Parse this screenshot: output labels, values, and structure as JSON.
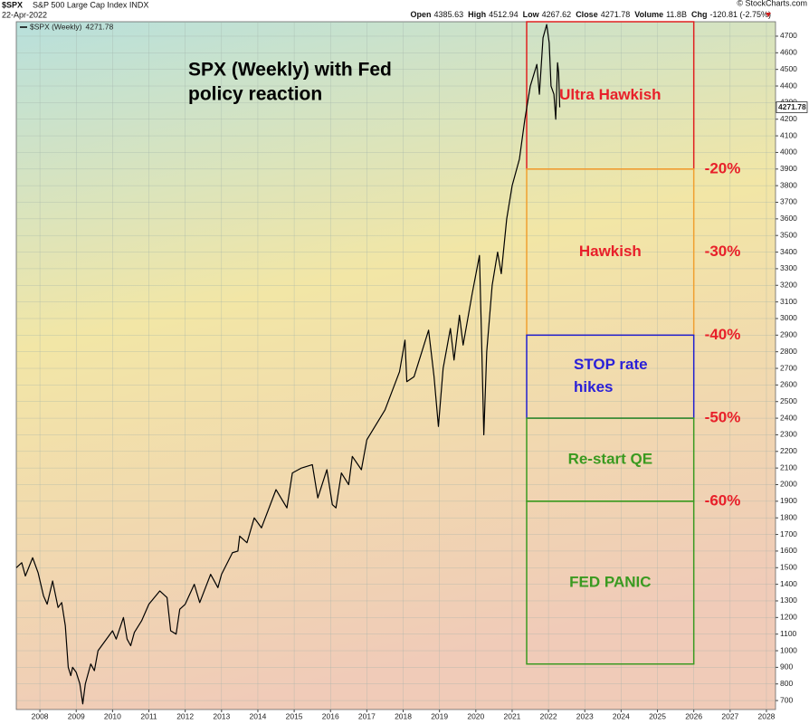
{
  "header": {
    "symbol": "$SPX",
    "name": "S&P 500 Large Cap Index INDX",
    "date": "22-Apr-2022",
    "watermark": "© StockCharts.com",
    "quote": [
      {
        "label": "Open",
        "value": 4385.63
      },
      {
        "label": "High",
        "value": 4512.94
      },
      {
        "label": "Low",
        "value": 4267.62
      },
      {
        "label": "Close",
        "value": 4271.78
      },
      {
        "label": "Volume",
        "value": "11.8B"
      },
      {
        "label": "Chg",
        "value": "-120.81 (-2.75%)"
      }
    ]
  },
  "chart_data": {
    "type": "line",
    "title_lines": [
      "SPX (Weekly) with Fed",
      "policy reaction"
    ],
    "last_value": 4271.78,
    "x": [
      2007.35,
      2007.5,
      2007.6,
      2007.8,
      2007.95,
      2008.1,
      2008.2,
      2008.35,
      2008.5,
      2008.6,
      2008.7,
      2008.78,
      2008.85,
      2008.9,
      2009.0,
      2009.1,
      2009.18,
      2009.25,
      2009.4,
      2009.5,
      2009.6,
      2009.8,
      2010.0,
      2010.1,
      2010.3,
      2010.4,
      2010.5,
      2010.6,
      2010.8,
      2011.0,
      2011.3,
      2011.5,
      2011.6,
      2011.75,
      2011.85,
      2012.0,
      2012.25,
      2012.4,
      2012.7,
      2012.9,
      2013.0,
      2013.3,
      2013.45,
      2013.5,
      2013.7,
      2013.9,
      2014.1,
      2014.5,
      2014.8,
      2014.95,
      2015.2,
      2015.5,
      2015.65,
      2015.9,
      2016.05,
      2016.15,
      2016.3,
      2016.5,
      2016.6,
      2016.85,
      2017.0,
      2017.5,
      2017.9,
      2018.05,
      2018.1,
      2018.3,
      2018.7,
      2018.85,
      2018.97,
      2019.1,
      2019.3,
      2019.4,
      2019.55,
      2019.65,
      2019.9,
      2020.1,
      2020.15,
      2020.22,
      2020.3,
      2020.45,
      2020.6,
      2020.7,
      2020.85,
      2021.0,
      2021.2,
      2021.35,
      2021.5,
      2021.68,
      2021.75,
      2021.85,
      2021.95,
      2022.02,
      2022.07,
      2022.15,
      2022.2,
      2022.25,
      2022.28,
      2022.31
    ],
    "series": [
      {
        "name": "$SPX (Weekly)",
        "color": "#000000",
        "values": [
          1500,
          1530,
          1450,
          1560,
          1470,
          1330,
          1280,
          1420,
          1260,
          1290,
          1150,
          900,
          850,
          900,
          870,
          800,
          680,
          800,
          920,
          880,
          1000,
          1060,
          1120,
          1070,
          1200,
          1070,
          1030,
          1110,
          1180,
          1280,
          1360,
          1320,
          1120,
          1100,
          1250,
          1280,
          1400,
          1290,
          1460,
          1380,
          1460,
          1590,
          1600,
          1690,
          1650,
          1800,
          1740,
          1970,
          1860,
          2070,
          2100,
          2120,
          1920,
          2090,
          1880,
          1860,
          2070,
          2000,
          2170,
          2090,
          2270,
          2450,
          2680,
          2870,
          2620,
          2650,
          2930,
          2650,
          2350,
          2700,
          2940,
          2750,
          3020,
          2840,
          3150,
          3380,
          2950,
          2300,
          2800,
          3200,
          3400,
          3270,
          3600,
          3800,
          3960,
          4200,
          4400,
          4530,
          4350,
          4690,
          4770,
          4660,
          4400,
          4350,
          4200,
          4540,
          4480,
          4271.78
        ]
      }
    ],
    "xlim": [
      2007.35,
      2028.25
    ],
    "xticks": [
      2008,
      2009,
      2010,
      2011,
      2012,
      2013,
      2014,
      2015,
      2016,
      2017,
      2018,
      2019,
      2020,
      2021,
      2022,
      2023,
      2024,
      2025,
      2026,
      2027,
      2028
    ],
    "ylim": [
      646,
      4787
    ],
    "yticks": [
      700,
      800,
      900,
      1000,
      1100,
      1200,
      1300,
      1400,
      1500,
      1600,
      1700,
      1800,
      1900,
      2000,
      2100,
      2200,
      2300,
      2400,
      2500,
      2600,
      2700,
      2800,
      2900,
      3000,
      3100,
      3200,
      3300,
      3400,
      3500,
      3600,
      3700,
      3800,
      3900,
      4000,
      4100,
      4200,
      4300,
      4400,
      4500,
      4600,
      4700
    ],
    "grid": true,
    "zones": [
      {
        "label_lines": [
          "Ultra Hawkish"
        ],
        "from": 3900,
        "to": 4787,
        "x_from": 2021.4,
        "x_to": 2026.0,
        "color": "#e02020",
        "text_color": "#e8202a"
      },
      {
        "label_lines": [
          "Hawkish"
        ],
        "from": 2900,
        "to": 3900,
        "x_from": 2021.4,
        "x_to": 2026.0,
        "color": "#f0a030",
        "text_color": "#e8202a"
      },
      {
        "label_lines": [
          "STOP rate",
          "hikes"
        ],
        "from": 2400,
        "to": 2900,
        "x_from": 2021.4,
        "x_to": 2026.0,
        "color": "#2020d0",
        "text_color": "#2a20d8"
      },
      {
        "label_lines": [
          "Re-start QE"
        ],
        "from": 1900,
        "to": 2400,
        "x_from": 2021.4,
        "x_to": 2026.0,
        "color": "#3a9a20",
        "text_color": "#3a9a20"
      },
      {
        "label_lines": [
          "FED PANIC"
        ],
        "from": 920,
        "to": 1900,
        "x_from": 2021.4,
        "x_to": 2026.0,
        "color": "#3a9a20",
        "text_color": "#3a9a20"
      }
    ],
    "levels": [
      {
        "label": "-20%",
        "value": 3900
      },
      {
        "label": "-30%",
        "value": 3400
      },
      {
        "label": "-40%",
        "value": 2900
      },
      {
        "label": "-50%",
        "value": 2400
      },
      {
        "label": "-60%",
        "value": 1900
      }
    ],
    "level_color": "#e8202a"
  }
}
